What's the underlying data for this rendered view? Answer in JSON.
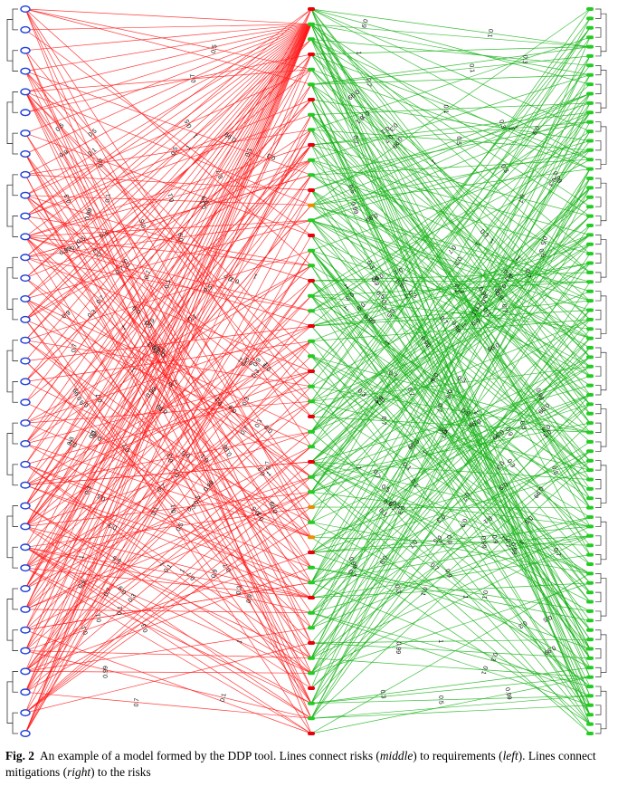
{
  "caption": {
    "label": "Fig. 2",
    "text_1": "An example of a model formed by the DDP tool. Lines connect risks (",
    "middle": "middle",
    "text_2": ") to requirements (",
    "left": "left",
    "text_3": "). Lines connect mitigations (",
    "right": "right",
    "text_4": ") to the risks"
  },
  "diagram": {
    "columns": [
      {
        "role": "requirements",
        "position": "left",
        "node_count": 36
      },
      {
        "role": "risks",
        "position": "middle",
        "node_count": 49
      },
      {
        "role": "mitigations",
        "position": "right",
        "node_count": 78
      }
    ],
    "edge_weights": [
      "0.1",
      "0.3",
      "0.5",
      "0.7",
      "0.9",
      "0.99",
      "1"
    ],
    "colors": {
      "requirement_node": "#1f3fd8",
      "risk_node_red": "#e8000b",
      "risk_node_green": "#22cc22",
      "risk_node_orange": "#e89000",
      "mitigation_node": "#22cc22",
      "risk_requirement_edge": "#ff1a1a",
      "mitigation_risk_edge": "#17b317",
      "tree_line": "#333333"
    }
  }
}
